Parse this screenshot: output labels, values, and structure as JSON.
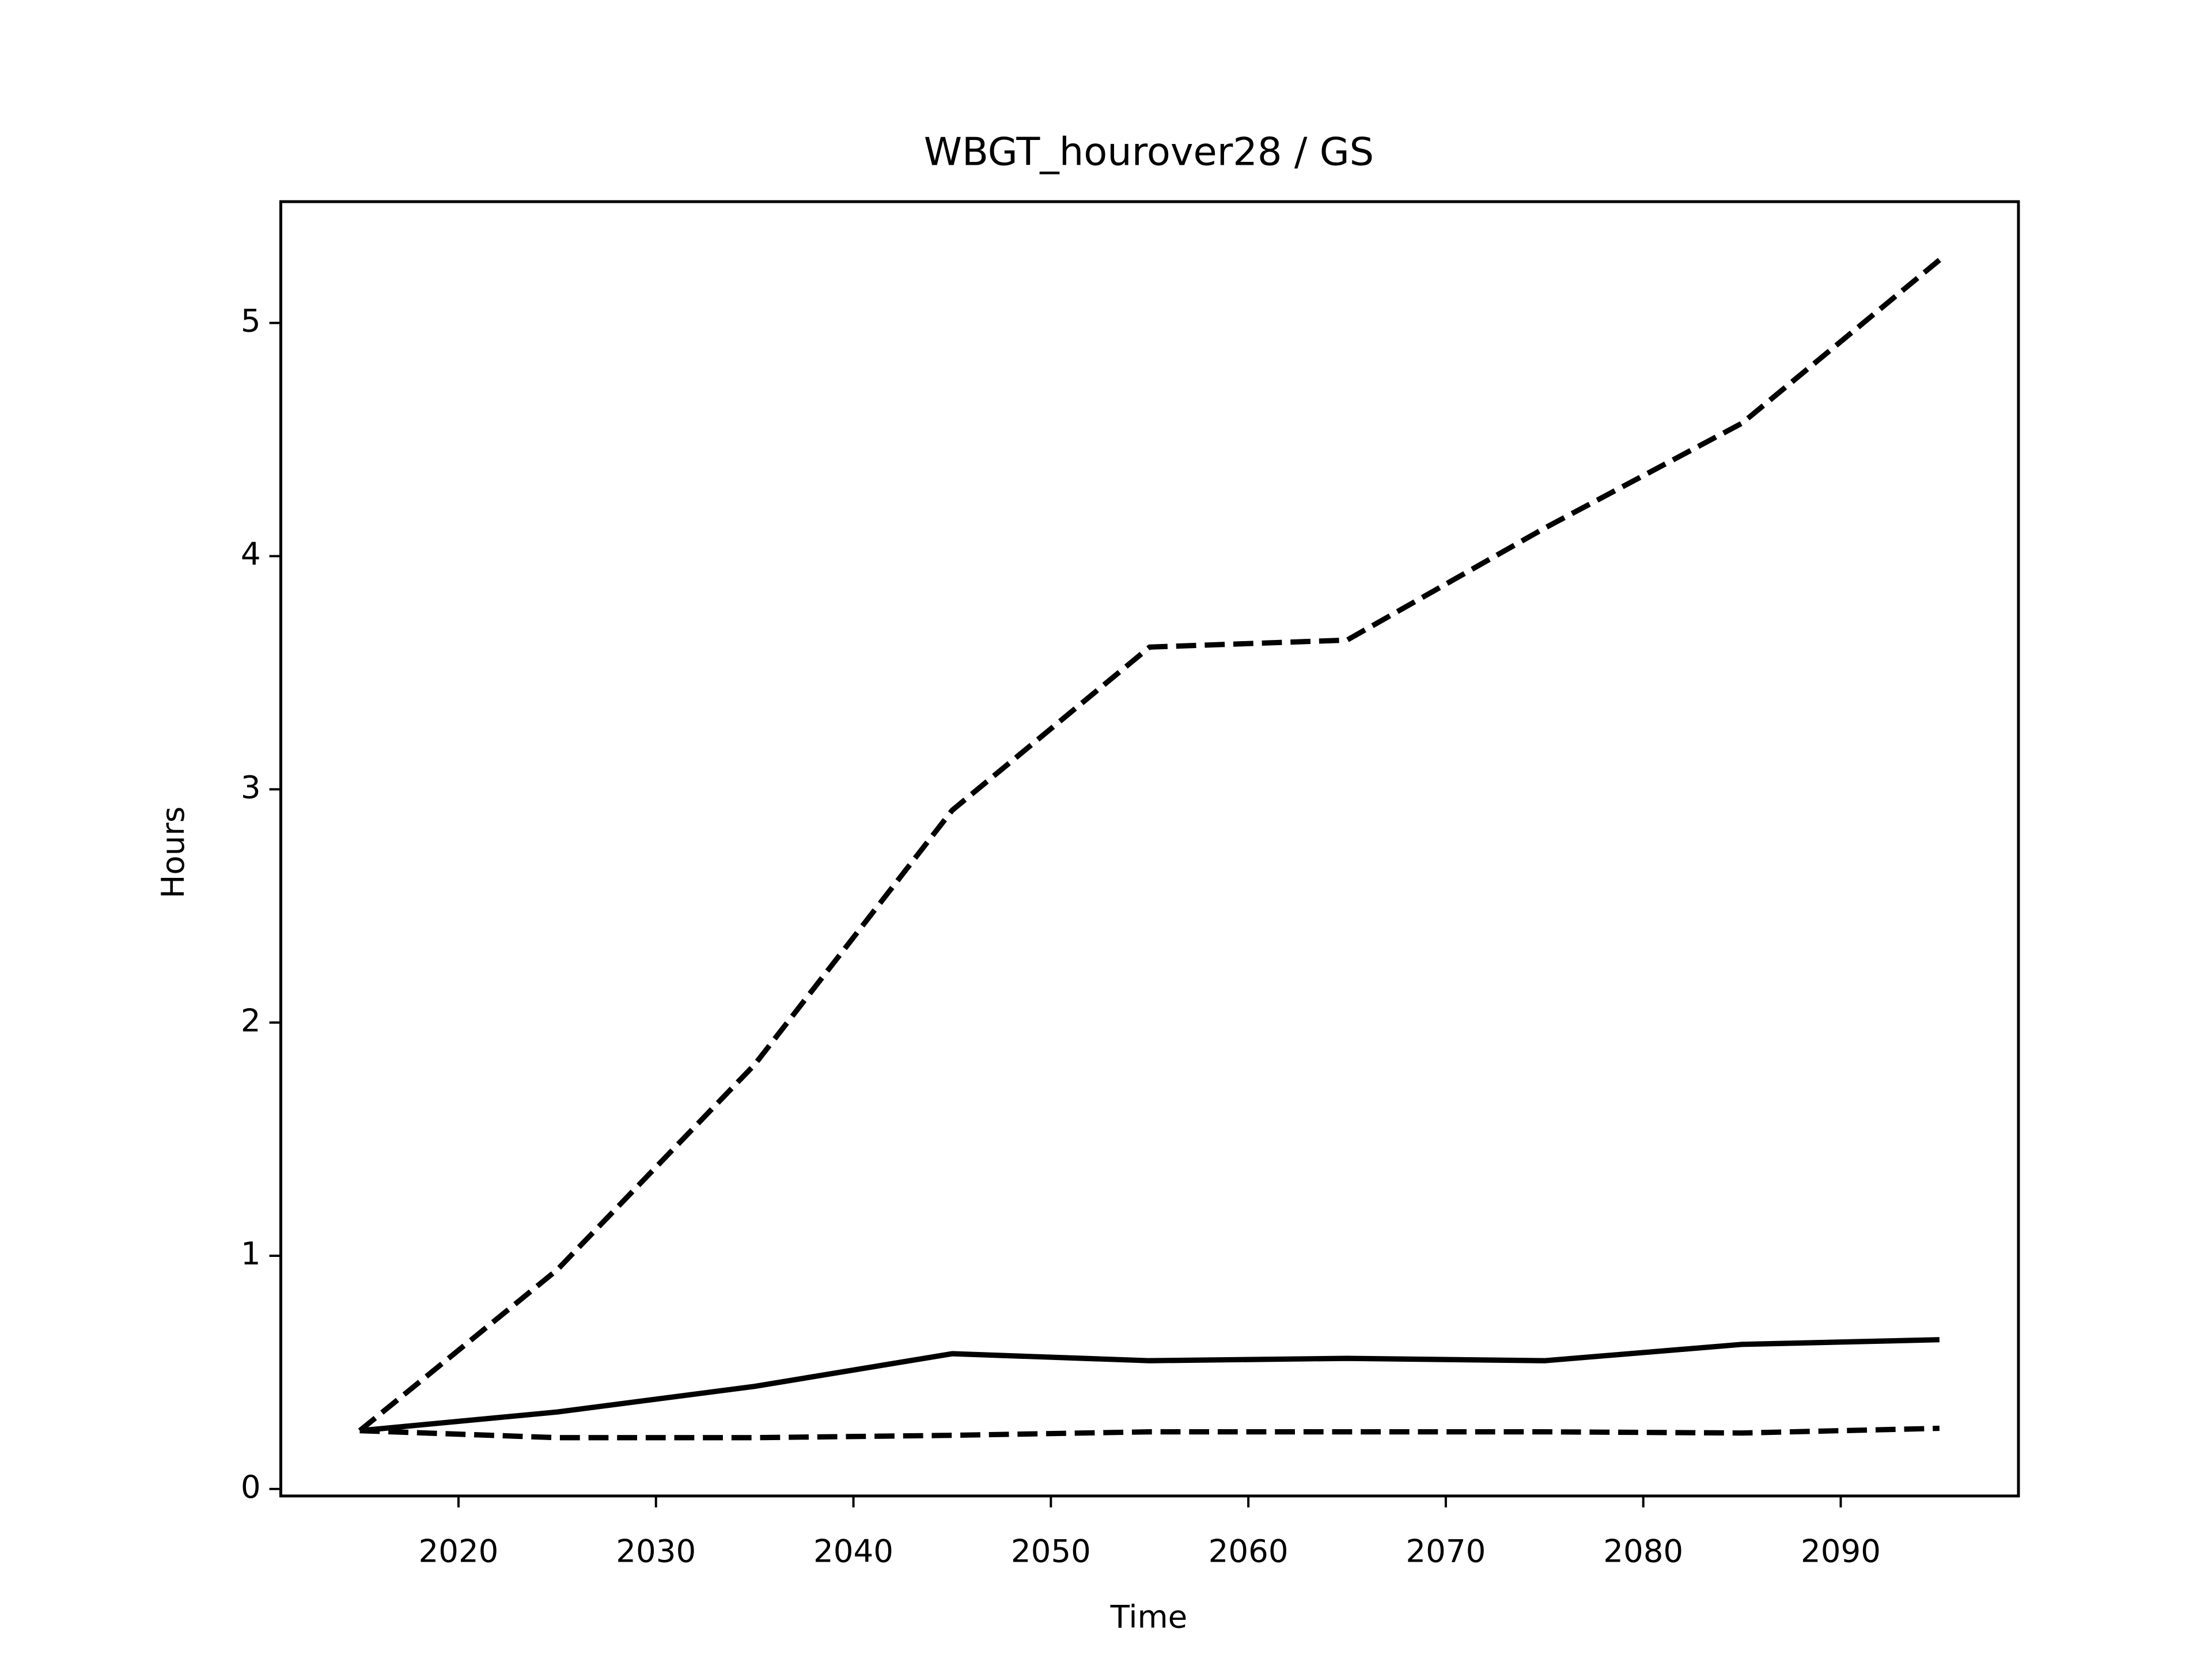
{
  "chart_data": {
    "type": "line",
    "title": "WBGT_hourover28 / GS",
    "xlabel": "Time",
    "ylabel": "Hours",
    "x": [
      2015,
      2025,
      2035,
      2045,
      2055,
      2065,
      2075,
      2085,
      2095
    ],
    "series": [
      {
        "color": "#000000",
        "dash": "dashed",
        "values": [
          0.25,
          0.94,
          1.82,
          2.91,
          3.61,
          3.64,
          4.12,
          4.57,
          5.27
        ]
      },
      {
        "color": "#000000",
        "dash": "solid",
        "values": [
          0.25,
          0.33,
          0.44,
          0.58,
          0.55,
          0.56,
          0.55,
          0.62,
          0.64
        ]
      },
      {
        "color": "#000000",
        "dash": "dashed",
        "values": [
          0.25,
          0.22,
          0.22,
          0.23,
          0.245,
          0.245,
          0.245,
          0.24,
          0.26
        ]
      }
    ],
    "xlim": [
      2011,
      2099
    ],
    "xticks": [
      2020,
      2030,
      2040,
      2050,
      2060,
      2070,
      2080,
      2090
    ],
    "ylim": [
      -0.03,
      5.52
    ],
    "yticks": [
      0,
      1,
      2,
      3,
      4,
      5
    ],
    "grid": false
  }
}
